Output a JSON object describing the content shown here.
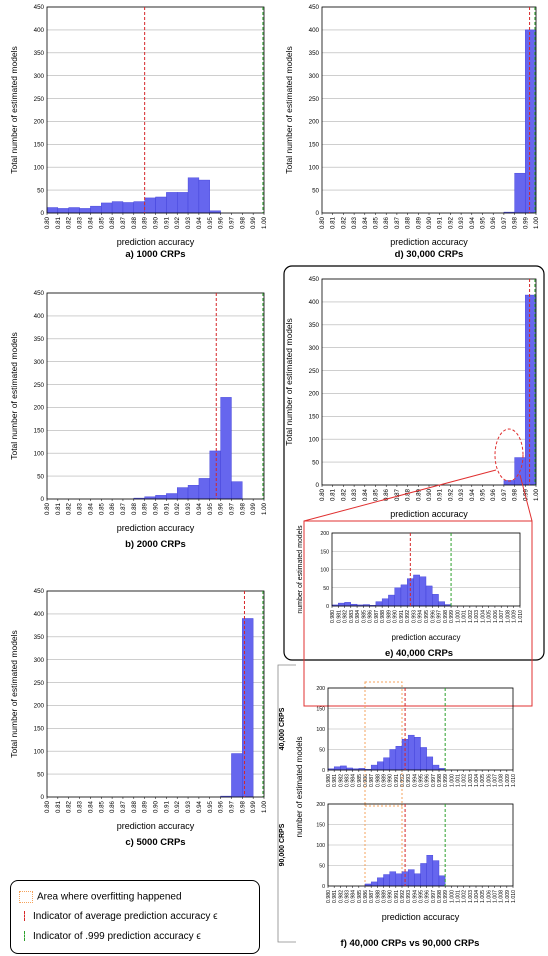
{
  "colors": {
    "bar": "#6666ee",
    "bar_edge": "#3b3bd6",
    "avg_line": "#d62728",
    "ref_line": "#2ca02c",
    "overfit": "#f5a35c",
    "inset": "#e03030",
    "grid": "#b0b0b0"
  },
  "shared": {
    "ylabel": "Total number of estimated models",
    "inset_ylabel": "number of estimated models",
    "xlabel": "prediction accuracy",
    "ticks": [
      "0.80",
      "0.81",
      "0.82",
      "0.83",
      "0.84",
      "0.85",
      "0.86",
      "0.87",
      "0.88",
      "0.89",
      "0.90",
      "0.91",
      "0.92",
      "0.93",
      "0.94",
      "0.95",
      "0.96",
      "0.97",
      "0.98",
      "0.99",
      "1.00"
    ],
    "fine_ticks": [
      "0.980",
      "0.981",
      "0.982",
      "0.983",
      "0.984",
      "0.985",
      "0.986",
      "0.987",
      "0.988",
      "0.989",
      "0.990",
      "0.991",
      "0.992",
      "0.993",
      "0.994",
      "0.995",
      "0.996",
      "0.997",
      "0.998",
      "0.999",
      "1.000",
      "1.001",
      "1.002",
      "1.003",
      "1.004",
      "1.005",
      "1.006",
      "1.007",
      "1.008",
      "1.009",
      "1.010"
    ]
  },
  "chart_data": [
    {
      "id": "a",
      "type": "bar",
      "caption": "a) 1000 CRPs",
      "ylim": [
        0,
        450
      ],
      "yticks": [
        0,
        50,
        100,
        150,
        200,
        250,
        300,
        350,
        400,
        450
      ],
      "xlim": [
        0.8,
        1.0
      ],
      "bins": [
        [
          0.8,
          0.81,
          12
        ],
        [
          0.81,
          0.82,
          10
        ],
        [
          0.82,
          0.83,
          12
        ],
        [
          0.83,
          0.84,
          10
        ],
        [
          0.84,
          0.85,
          15
        ],
        [
          0.85,
          0.86,
          22
        ],
        [
          0.86,
          0.87,
          25
        ],
        [
          0.87,
          0.88,
          23
        ],
        [
          0.88,
          0.89,
          25
        ],
        [
          0.89,
          0.9,
          33
        ],
        [
          0.9,
          0.91,
          35
        ],
        [
          0.91,
          0.92,
          45
        ],
        [
          0.92,
          0.93,
          45
        ],
        [
          0.93,
          0.94,
          77
        ],
        [
          0.94,
          0.95,
          72
        ],
        [
          0.95,
          0.96,
          5
        ]
      ],
      "avg": 0.89,
      "ref": 0.999
    },
    {
      "id": "b",
      "type": "bar",
      "caption": "b) 2000 CRPs",
      "ylim": [
        0,
        450
      ],
      "yticks": [
        0,
        50,
        100,
        150,
        200,
        250,
        300,
        350,
        400,
        450
      ],
      "xlim": [
        0.8,
        1.0
      ],
      "bins": [
        [
          0.88,
          0.89,
          2
        ],
        [
          0.89,
          0.9,
          5
        ],
        [
          0.9,
          0.91,
          8
        ],
        [
          0.91,
          0.92,
          12
        ],
        [
          0.92,
          0.93,
          25
        ],
        [
          0.93,
          0.94,
          30
        ],
        [
          0.94,
          0.95,
          45
        ],
        [
          0.95,
          0.96,
          105
        ],
        [
          0.96,
          0.97,
          222
        ],
        [
          0.97,
          0.98,
          38
        ]
      ],
      "avg": 0.956,
      "ref": 0.999
    },
    {
      "id": "c",
      "type": "bar",
      "caption": "c) 5000 CRPs",
      "ylim": [
        0,
        450
      ],
      "yticks": [
        0,
        50,
        100,
        150,
        200,
        250,
        300,
        350,
        400,
        450
      ],
      "xlim": [
        0.8,
        1.0
      ],
      "bins": [
        [
          0.96,
          0.97,
          2
        ],
        [
          0.97,
          0.98,
          95
        ],
        [
          0.98,
          0.99,
          390
        ]
      ],
      "avg": 0.982,
      "ref": 0.999
    },
    {
      "id": "d",
      "type": "bar",
      "caption": "d) 30,000 CRPs",
      "ylim": [
        0,
        450
      ],
      "yticks": [
        0,
        50,
        100,
        150,
        200,
        250,
        300,
        350,
        400,
        450
      ],
      "xlim": [
        0.8,
        1.0
      ],
      "bins": [
        [
          0.97,
          0.98,
          2
        ],
        [
          0.98,
          0.99,
          87
        ],
        [
          0.99,
          1.0,
          400
        ]
      ],
      "avg": 0.994,
      "ref": 0.999
    },
    {
      "id": "e",
      "type": "bar",
      "caption": "e) 40,000 CRPs",
      "ylim": [
        0,
        450
      ],
      "yticks": [
        0,
        50,
        100,
        150,
        200,
        250,
        300,
        350,
        400,
        450
      ],
      "xlim": [
        0.8,
        1.0
      ],
      "bins": [
        [
          0.97,
          0.98,
          10
        ],
        [
          0.98,
          0.99,
          60
        ],
        [
          0.99,
          1.0,
          415
        ]
      ],
      "avg": 0.994,
      "ref": 0.999
    },
    {
      "id": "e-inset",
      "type": "bar",
      "caption": "",
      "ylim": [
        0,
        200
      ],
      "yticks": [
        0,
        50,
        100,
        150,
        200
      ],
      "xlim": [
        0.98,
        1.01
      ],
      "bins": [
        [
          0.98,
          0.981,
          3
        ],
        [
          0.981,
          0.982,
          8
        ],
        [
          0.982,
          0.983,
          10
        ],
        [
          0.983,
          0.984,
          5
        ],
        [
          0.984,
          0.985,
          3
        ],
        [
          0.985,
          0.986,
          4
        ],
        [
          0.986,
          0.987,
          2
        ],
        [
          0.987,
          0.988,
          12
        ],
        [
          0.988,
          0.989,
          20
        ],
        [
          0.989,
          0.99,
          30
        ],
        [
          0.99,
          0.991,
          50
        ],
        [
          0.991,
          0.992,
          58
        ],
        [
          0.992,
          0.993,
          75
        ],
        [
          0.993,
          0.994,
          85
        ],
        [
          0.994,
          0.995,
          80
        ],
        [
          0.995,
          0.996,
          55
        ],
        [
          0.996,
          0.997,
          32
        ],
        [
          0.997,
          0.998,
          12
        ],
        [
          0.998,
          0.999,
          4
        ]
      ],
      "avg": 0.9925,
      "ref": 0.999
    },
    {
      "id": "f-top",
      "type": "bar",
      "caption": "",
      "ylim": [
        0,
        200
      ],
      "yticks": [
        0,
        50,
        100,
        150,
        200
      ],
      "xlim": [
        0.98,
        1.01
      ],
      "bins": [
        [
          0.98,
          0.981,
          3
        ],
        [
          0.981,
          0.982,
          8
        ],
        [
          0.982,
          0.983,
          10
        ],
        [
          0.983,
          0.984,
          5
        ],
        [
          0.984,
          0.985,
          3
        ],
        [
          0.985,
          0.986,
          4
        ],
        [
          0.986,
          0.987,
          2
        ],
        [
          0.987,
          0.988,
          12
        ],
        [
          0.988,
          0.989,
          20
        ],
        [
          0.989,
          0.99,
          30
        ],
        [
          0.99,
          0.991,
          50
        ],
        [
          0.991,
          0.992,
          58
        ],
        [
          0.992,
          0.993,
          75
        ],
        [
          0.993,
          0.994,
          85
        ],
        [
          0.994,
          0.995,
          80
        ],
        [
          0.995,
          0.996,
          55
        ],
        [
          0.996,
          0.997,
          32
        ],
        [
          0.997,
          0.998,
          12
        ],
        [
          0.998,
          0.999,
          4
        ]
      ],
      "avg": 0.9925,
      "ref": 0.999,
      "overfit": [
        0.986,
        0.992
      ]
    },
    {
      "id": "f-bottom",
      "type": "bar",
      "caption": "f) 40,000 CRPs vs 90,000 CRPs",
      "ylim": [
        0,
        200
      ],
      "yticks": [
        0,
        50,
        100,
        150,
        200
      ],
      "xlim": [
        0.98,
        1.01
      ],
      "bins": [
        [
          0.986,
          0.987,
          5
        ],
        [
          0.987,
          0.988,
          10
        ],
        [
          0.988,
          0.989,
          20
        ],
        [
          0.989,
          0.99,
          28
        ],
        [
          0.99,
          0.991,
          35
        ],
        [
          0.991,
          0.992,
          30
        ],
        [
          0.992,
          0.993,
          35
        ],
        [
          0.993,
          0.994,
          40
        ],
        [
          0.994,
          0.995,
          30
        ],
        [
          0.995,
          0.996,
          55
        ],
        [
          0.996,
          0.997,
          75
        ],
        [
          0.997,
          0.998,
          62
        ],
        [
          0.998,
          0.999,
          25
        ]
      ],
      "avg": 0.9925,
      "ref": 0.999,
      "overfit": [
        0.986,
        0.992
      ]
    }
  ],
  "side_labels": {
    "top": "40,000 CRPS",
    "bottom": "90,000 CRPS"
  },
  "legend": {
    "overfit": "Area where overfitting happened",
    "avg": "Indicator of average prediction accuracy ϵ",
    "ref": "Indicator of .999 prediction accuracy ϵ"
  }
}
